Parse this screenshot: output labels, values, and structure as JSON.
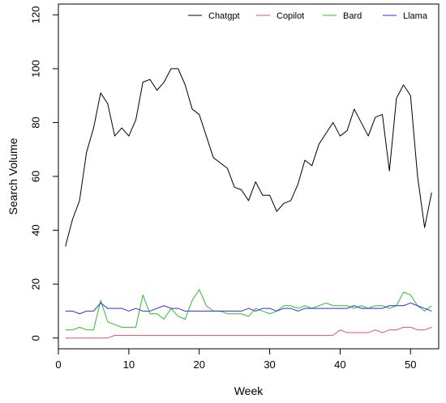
{
  "chart_data": {
    "type": "line",
    "title": "",
    "xlabel": "Week",
    "ylabel": "Search Volume",
    "xlim": [
      0,
      54
    ],
    "ylim": [
      -4,
      124
    ],
    "xticks": [
      0,
      10,
      20,
      30,
      40,
      50
    ],
    "yticks": [
      0,
      20,
      40,
      60,
      80,
      100,
      120
    ],
    "grid": false,
    "legend": "top-right",
    "x": [
      1,
      2,
      3,
      4,
      5,
      6,
      7,
      8,
      9,
      10,
      11,
      12,
      13,
      14,
      15,
      16,
      17,
      18,
      19,
      20,
      21,
      22,
      23,
      24,
      25,
      26,
      27,
      28,
      29,
      30,
      31,
      32,
      33,
      34,
      35,
      36,
      37,
      38,
      39,
      40,
      41,
      42,
      43,
      44,
      45,
      46,
      47,
      48,
      49,
      50,
      51,
      52,
      53
    ],
    "series": [
      {
        "name": "Chatgpt",
        "color": "#000000",
        "values": [
          34,
          44,
          51,
          69,
          78,
          91,
          87,
          75,
          78,
          75,
          81,
          95,
          96,
          92,
          95,
          100,
          100,
          94,
          85,
          83,
          75,
          67,
          65,
          63,
          56,
          55,
          51,
          58,
          53,
          53,
          47,
          50,
          51,
          57,
          66,
          64,
          72,
          76,
          80,
          75,
          77,
          85,
          80,
          75,
          82,
          83,
          62,
          89,
          94,
          90,
          60,
          41,
          54
        ]
      },
      {
        "name": "Copilot",
        "color": "#df536b",
        "values": [
          0,
          0,
          0,
          0,
          0,
          0,
          0,
          1,
          1,
          1,
          1,
          1,
          1,
          1,
          1,
          1,
          1,
          1,
          1,
          1,
          1,
          1,
          1,
          1,
          1,
          1,
          1,
          1,
          1,
          1,
          1,
          1,
          1,
          1,
          1,
          1,
          1,
          1,
          1,
          3,
          2,
          2,
          2,
          2,
          3,
          2,
          3,
          3,
          4,
          4,
          3,
          3,
          4
        ]
      },
      {
        "name": "Bard",
        "color": "#2dbd2d",
        "values": [
          3,
          3,
          4,
          3,
          3,
          14,
          6,
          5,
          4,
          4,
          4,
          16,
          9,
          9,
          7,
          11,
          8,
          7,
          14,
          18,
          12,
          10,
          10,
          9,
          9,
          9,
          8,
          11,
          10,
          9,
          10,
          12,
          12,
          11,
          12,
          11,
          12,
          13,
          12,
          12,
          12,
          11,
          12,
          11,
          12,
          12,
          11,
          12,
          17,
          16,
          12,
          10,
          12
        ]
      },
      {
        "name": "Llama",
        "color": "#2f2fd6",
        "values": [
          10,
          10,
          9,
          10,
          10,
          13,
          11,
          11,
          11,
          10,
          11,
          10,
          10,
          11,
          12,
          11,
          11,
          10,
          10,
          10,
          10,
          10,
          10,
          10,
          10,
          10,
          11,
          10,
          11,
          11,
          10,
          11,
          11,
          10,
          11,
          11,
          11,
          11,
          11,
          11,
          11,
          12,
          11,
          11,
          11,
          11,
          12,
          12,
          12,
          13,
          12,
          11,
          10
        ]
      }
    ]
  }
}
